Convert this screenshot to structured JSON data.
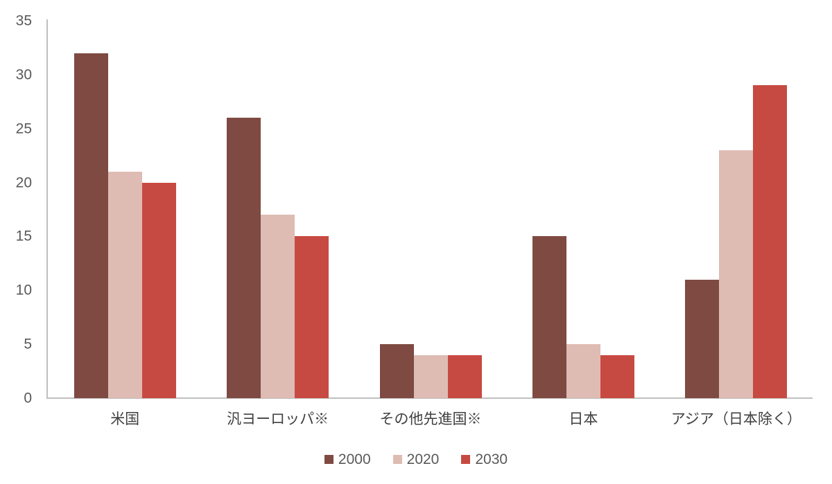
{
  "chart_data": {
    "type": "bar",
    "categories": [
      "米国",
      "汎ヨーロッパ※",
      "その他先進国※",
      "日本",
      "アジア（日本除く）"
    ],
    "series": [
      {
        "name": "2000",
        "color": "#7e4a42",
        "values": [
          32,
          26,
          5,
          15,
          11
        ]
      },
      {
        "name": "2020",
        "color": "#debcb3",
        "values": [
          21,
          17,
          4,
          5,
          23
        ]
      },
      {
        "name": "2030",
        "color": "#c74a42",
        "values": [
          20,
          15,
          4,
          4,
          29
        ]
      }
    ],
    "title": "",
    "xlabel": "",
    "ylabel": "",
    "ylim": [
      0,
      35
    ],
    "yticks": [
      0,
      5,
      10,
      15,
      20,
      25,
      30,
      35
    ],
    "grid": false,
    "legend_position": "bottom",
    "colors": {
      "axis_line": "#bfbfbf",
      "y_tick_label": "#595959",
      "x_category_label": "#404040",
      "legend_label": "#595959",
      "background": "#ffffff"
    }
  }
}
